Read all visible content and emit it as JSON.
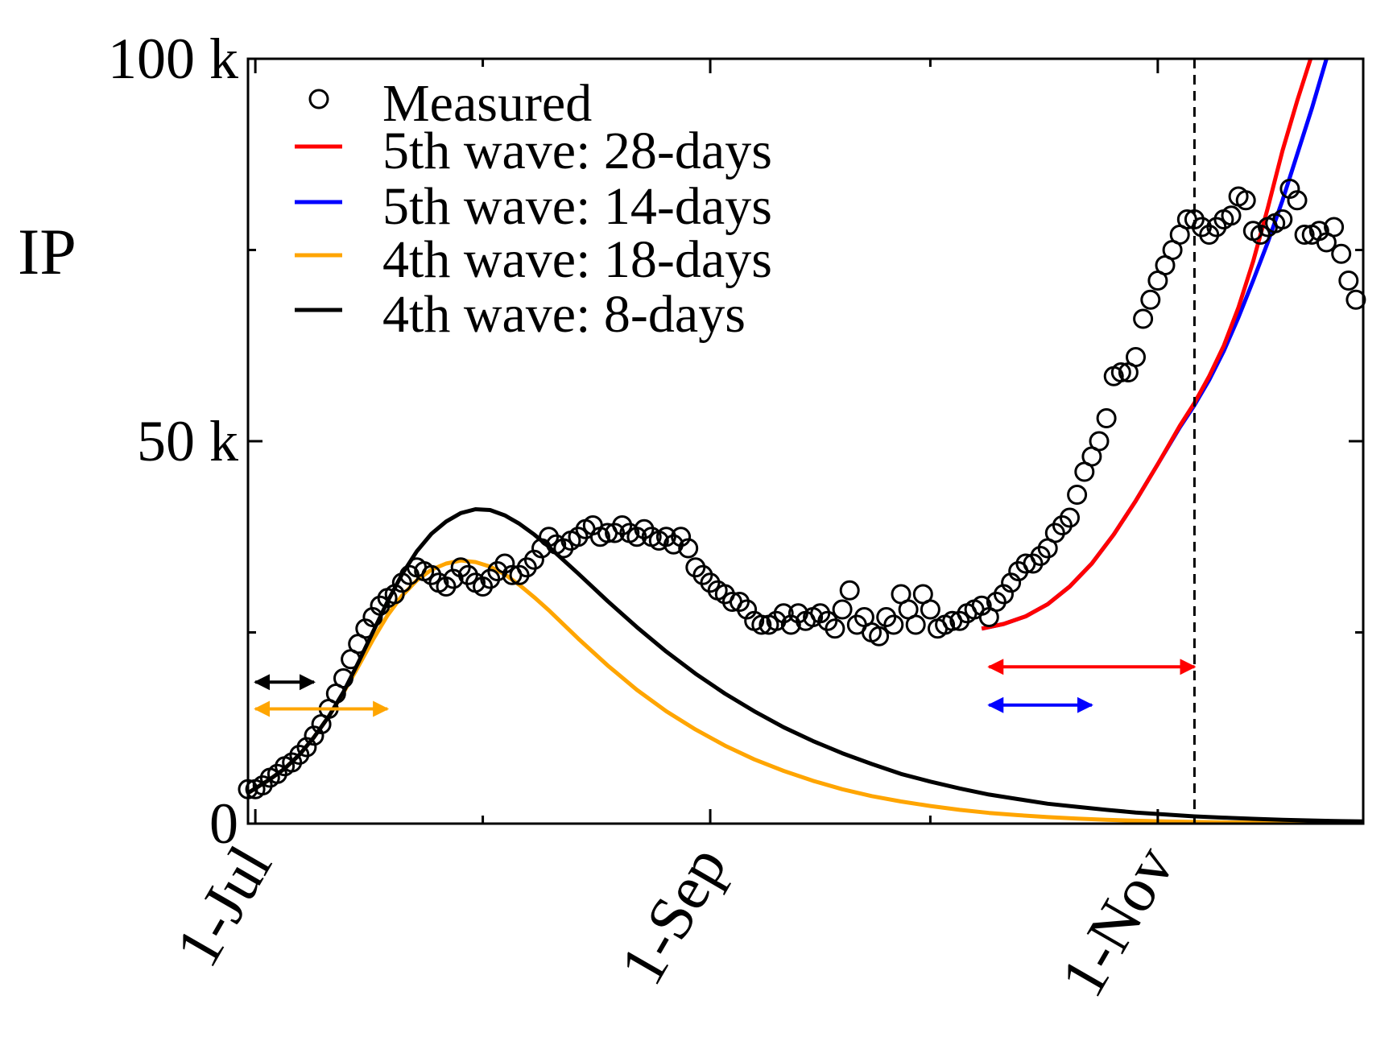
{
  "chart_data": {
    "type": "line",
    "title": "",
    "xlabel": "",
    "ylabel": "IP",
    "xlim": [
      -1,
      151
    ],
    "ylim": [
      0,
      100000
    ],
    "grid": false,
    "legend_position": "top-left",
    "y_ticks": [
      {
        "value": 0,
        "label": "0"
      },
      {
        "value": 50000,
        "label": "50 k"
      },
      {
        "value": 100000,
        "label": "100 k"
      }
    ],
    "y_minor_ticks": [
      25000,
      75000
    ],
    "x_ticks": [
      {
        "value": 0,
        "label": "1-Jul"
      },
      {
        "value": 62,
        "label": "1-Sep"
      },
      {
        "value": 123,
        "label": "1-Nov"
      }
    ],
    "x_minor_ticks": [
      31,
      92,
      153
    ],
    "vertical_line": {
      "x": 128,
      "style": "dashed",
      "color": "#000000"
    },
    "series": [
      {
        "name": "Measured",
        "marker": "open-circle",
        "color": "#000000",
        "x": [
          -1,
          0,
          1,
          2,
          3,
          4,
          5,
          6,
          7,
          8,
          9,
          10,
          11,
          12,
          13,
          14,
          15,
          16,
          17,
          18,
          19,
          20,
          21,
          22,
          23,
          24,
          25,
          26,
          27,
          28,
          29,
          30,
          31,
          32,
          33,
          34,
          35,
          36,
          37,
          38,
          39,
          40,
          41,
          42,
          43,
          44,
          45,
          46,
          47,
          48,
          49,
          50,
          51,
          52,
          53,
          54,
          55,
          56,
          57,
          58,
          59,
          60,
          61,
          62,
          63,
          64,
          65,
          66,
          67,
          68,
          69,
          70,
          71,
          72,
          73,
          74,
          75,
          76,
          77,
          78,
          79,
          80,
          81,
          82,
          83,
          84,
          85,
          86,
          87,
          88,
          89,
          90,
          91,
          92,
          93,
          94,
          95,
          96,
          97,
          98,
          99,
          100,
          101,
          102,
          103,
          104,
          105,
          106,
          107,
          108,
          109,
          110,
          111,
          112,
          113,
          114,
          115,
          116,
          117,
          118,
          119,
          120,
          121,
          122,
          123,
          124,
          125,
          126,
          127,
          128,
          129,
          130,
          131,
          132,
          133,
          134,
          135,
          136,
          137,
          138,
          139,
          140,
          141,
          142,
          143,
          144,
          145,
          146,
          147,
          148,
          149,
          150
        ],
        "y": [
          4500,
          4500,
          5000,
          6000,
          6500,
          7500,
          8000,
          9000,
          10000,
          11500,
          13000,
          15000,
          17000,
          19000,
          21500,
          23500,
          25500,
          27000,
          28500,
          29500,
          30000,
          31500,
          32500,
          33500,
          33000,
          32500,
          31500,
          31000,
          32000,
          33500,
          32500,
          31500,
          31000,
          32000,
          33000,
          34000,
          32500,
          32500,
          33500,
          34500,
          36000,
          37500,
          36500,
          36000,
          37000,
          37500,
          38500,
          39000,
          37500,
          38000,
          38000,
          39000,
          38000,
          37500,
          38500,
          37500,
          37000,
          37500,
          36500,
          37500,
          36000,
          33500,
          32500,
          31500,
          30500,
          30000,
          29000,
          29000,
          28000,
          26500,
          26000,
          26000,
          26500,
          27500,
          26000,
          27500,
          26500,
          27000,
          27500,
          26500,
          25500,
          28000,
          30500,
          26000,
          27000,
          25000,
          24500,
          27000,
          26000,
          30000,
          28000,
          26000,
          30000,
          28000,
          25500,
          26000,
          26500,
          26500,
          27500,
          28000,
          28500,
          27000,
          29000,
          30000,
          31500,
          33000,
          34000,
          34000,
          35000,
          36000,
          38000,
          39000,
          40000,
          43000,
          46000,
          48000,
          50000,
          53000,
          58500,
          59000,
          59000,
          61000,
          66000,
          68500,
          71000,
          73000,
          75000,
          77000,
          79000,
          79000,
          78000,
          77000,
          78000,
          79000,
          79500,
          82000,
          81500,
          77500,
          77000,
          78000,
          78500,
          79000,
          83000,
          81500,
          77000,
          77000,
          77500,
          76000,
          78000,
          74500,
          71000,
          68500
        ],
        "labels": [
          "Measured"
        ]
      },
      {
        "name": "5th wave: 28-days",
        "color": "#ff0000",
        "x": [
          99,
          102,
          105,
          108,
          111,
          114,
          117,
          120,
          123,
          126,
          128,
          130,
          132,
          134,
          136,
          138,
          140,
          142,
          144,
          145.6
        ],
        "y": [
          25500,
          26100,
          27100,
          28700,
          31000,
          34000,
          37800,
          42200,
          47000,
          52000,
          55000,
          58500,
          62500,
          67500,
          73500,
          80500,
          88000,
          94500,
          100500,
          105000
        ]
      },
      {
        "name": "5th wave: 14-days",
        "color": "#0000ff",
        "x": [
          99,
          102,
          105,
          108,
          111,
          114,
          117,
          120,
          123,
          126,
          128,
          130,
          132,
          134,
          136,
          138,
          140,
          142,
          144,
          146,
          148,
          148.5
        ],
        "y": [
          25500,
          26100,
          27100,
          28700,
          31000,
          34000,
          37800,
          42200,
          47000,
          51800,
          54700,
          58000,
          61800,
          66200,
          71000,
          76000,
          81500,
          87500,
          93500,
          100000,
          106500,
          108000
        ]
      },
      {
        "name": "4th wave: 18-days",
        "color": "#ffa500",
        "x": [
          -1,
          0,
          2,
          4,
          6,
          8,
          10,
          12,
          14,
          16,
          18,
          20,
          22,
          24,
          26,
          28,
          30,
          32,
          34,
          36,
          38,
          40,
          44,
          48,
          52,
          56,
          60,
          64,
          68,
          72,
          76,
          80,
          84,
          88,
          92,
          96,
          100,
          104,
          108,
          112,
          116,
          120,
          124,
          128,
          132,
          136,
          140,
          144,
          148,
          151
        ],
        "y": [
          4000,
          4600,
          5800,
          7200,
          9000,
          11300,
          14000,
          17100,
          20500,
          24000,
          27200,
          29800,
          31800,
          33200,
          34000,
          34400,
          34200,
          33600,
          32600,
          31200,
          29600,
          27900,
          24200,
          20700,
          17500,
          14700,
          12300,
          10200,
          8400,
          6900,
          5600,
          4500,
          3600,
          2900,
          2300,
          1800,
          1400,
          1100,
          850,
          650,
          500,
          380,
          290,
          220,
          170,
          130,
          100,
          80,
          60,
          50
        ]
      },
      {
        "name": "4th wave: 8-days",
        "color": "#000000",
        "x": [
          -1,
          0,
          2,
          4,
          6,
          8,
          10,
          12,
          14,
          16,
          18,
          20,
          22,
          24,
          26,
          28,
          30,
          32,
          34,
          36,
          38,
          40,
          44,
          48,
          52,
          56,
          60,
          64,
          68,
          72,
          76,
          80,
          84,
          88,
          92,
          96,
          100,
          104,
          108,
          112,
          116,
          120,
          124,
          128,
          132,
          136,
          140,
          144,
          148,
          151
        ],
        "y": [
          4000,
          4600,
          5800,
          7200,
          9000,
          11300,
          14000,
          17200,
          21000,
          25000,
          29000,
          32600,
          35600,
          37900,
          39500,
          40600,
          41100,
          41000,
          40300,
          39200,
          37800,
          36200,
          32700,
          29100,
          25700,
          22500,
          19600,
          17000,
          14700,
          12600,
          10800,
          9200,
          7800,
          6500,
          5500,
          4600,
          3800,
          3200,
          2600,
          2200,
          1800,
          1450,
          1200,
          950,
          780,
          630,
          510,
          410,
          330,
          280
        ]
      }
    ],
    "range_arrows": [
      {
        "name": "black-8-days-window",
        "color": "#000000",
        "x_start": 0,
        "x_end": 8,
        "y": 18500
      },
      {
        "name": "orange-18-days-window",
        "color": "#ffa500",
        "x_start": 0,
        "x_end": 18,
        "y": 15000
      },
      {
        "name": "red-28-days-window",
        "color": "#ff0000",
        "x_start": 100,
        "x_end": 128,
        "y": 20500
      },
      {
        "name": "blue-14-days-window",
        "color": "#0000ff",
        "x_start": 100,
        "x_end": 114,
        "y": 15500
      }
    ]
  }
}
